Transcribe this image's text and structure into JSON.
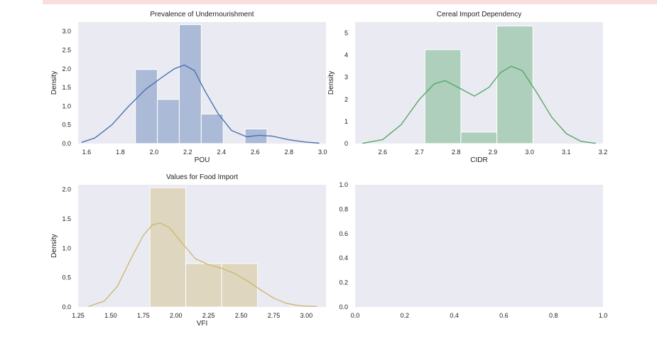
{
  "colors": {
    "background": "#eaeaf2",
    "warning_band": "#fbdddd"
  },
  "chart_data": [
    {
      "type": "histogram",
      "title": "Prevalence of Undernourishment",
      "xlabel": "POU",
      "ylabel": "Density",
      "color": "#4c72b0",
      "xlim": [
        1.55,
        3.02
      ],
      "ylim": [
        0,
        3.25
      ],
      "xticks": [
        "1.6",
        "1.8",
        "2.0",
        "2.2",
        "2.4",
        "2.6",
        "2.8",
        "3.0"
      ],
      "yticks": [
        "0.0",
        "0.5",
        "1.0",
        "1.5",
        "2.0",
        "2.5",
        "3.0"
      ],
      "bins": [
        {
          "x0": 1.89,
          "x1": 2.02,
          "density": 1.98
        },
        {
          "x0": 2.02,
          "x1": 2.15,
          "density": 1.18
        },
        {
          "x0": 2.15,
          "x1": 2.28,
          "density": 3.18
        },
        {
          "x0": 2.28,
          "x1": 2.41,
          "density": 0.79
        },
        {
          "x0": 2.41,
          "x1": 2.54,
          "density": 0.0
        },
        {
          "x0": 2.54,
          "x1": 2.67,
          "density": 0.39
        }
      ],
      "kde": {
        "x": [
          1.57,
          1.65,
          1.75,
          1.85,
          1.95,
          2.05,
          2.12,
          2.18,
          2.24,
          2.3,
          2.38,
          2.46,
          2.55,
          2.62,
          2.7,
          2.8,
          2.9,
          2.98
        ],
        "y": [
          0.03,
          0.15,
          0.5,
          1.0,
          1.45,
          1.78,
          2.0,
          2.1,
          1.95,
          1.42,
          0.8,
          0.35,
          0.18,
          0.22,
          0.2,
          0.1,
          0.04,
          0.01
        ]
      }
    },
    {
      "type": "histogram",
      "title": "Cereal Import Dependency",
      "xlabel": "CIDR",
      "ylabel": "Density",
      "color": "#55a868",
      "xlim": [
        2.525,
        3.2
      ],
      "ylim": [
        0,
        5.5
      ],
      "xticks": [
        "2.6",
        "2.7",
        "2.8",
        "2.9",
        "3.0",
        "3.1",
        "3.2"
      ],
      "yticks": [
        "0",
        "1",
        "2",
        "3",
        "4",
        "5"
      ],
      "bins": [
        {
          "x0": 2.715,
          "x1": 2.813,
          "density": 4.25
        },
        {
          "x0": 2.813,
          "x1": 2.911,
          "density": 0.52
        },
        {
          "x0": 2.911,
          "x1": 3.009,
          "density": 5.32
        }
      ],
      "kde": {
        "x": [
          2.545,
          2.6,
          2.65,
          2.7,
          2.74,
          2.77,
          2.81,
          2.85,
          2.89,
          2.92,
          2.95,
          2.98,
          3.02,
          3.06,
          3.1,
          3.14,
          3.18
        ],
        "y": [
          0.01,
          0.18,
          0.85,
          2.0,
          2.7,
          2.85,
          2.5,
          2.15,
          2.55,
          3.2,
          3.5,
          3.3,
          2.3,
          1.2,
          0.45,
          0.1,
          0.01
        ]
      }
    },
    {
      "type": "histogram",
      "title": "Values for Food Import",
      "xlabel": "VFI",
      "ylabel": "Density",
      "color": "#ccb974",
      "xlim": [
        1.25,
        3.15
      ],
      "ylim": [
        0,
        2.08
      ],
      "xticks": [
        "1.25",
        "1.50",
        "1.75",
        "2.00",
        "2.25",
        "2.50",
        "2.75",
        "3.00"
      ],
      "yticks": [
        "0.0",
        "0.5",
        "1.0",
        "1.5",
        "2.0"
      ],
      "bins": [
        {
          "x0": 1.8,
          "x1": 2.075,
          "density": 2.03
        },
        {
          "x0": 2.075,
          "x1": 2.35,
          "density": 0.74
        },
        {
          "x0": 2.35,
          "x1": 2.625,
          "density": 0.74
        }
      ],
      "kde": {
        "x": [
          1.33,
          1.45,
          1.55,
          1.65,
          1.75,
          1.82,
          1.88,
          1.95,
          2.05,
          2.15,
          2.25,
          2.35,
          2.45,
          2.55,
          2.65,
          2.75,
          2.85,
          2.95,
          3.08
        ],
        "y": [
          0.01,
          0.1,
          0.35,
          0.8,
          1.22,
          1.4,
          1.43,
          1.35,
          1.08,
          0.82,
          0.72,
          0.66,
          0.57,
          0.44,
          0.29,
          0.15,
          0.06,
          0.02,
          0.01
        ]
      }
    },
    {
      "type": "empty",
      "title": "",
      "xlim": [
        0,
        1
      ],
      "ylim": [
        0,
        1
      ],
      "xticks": [
        "0.0",
        "0.2",
        "0.4",
        "0.6",
        "0.8",
        "1.0"
      ],
      "yticks": [
        "0.0",
        "0.2",
        "0.4",
        "0.6",
        "0.8",
        "1.0"
      ]
    }
  ]
}
